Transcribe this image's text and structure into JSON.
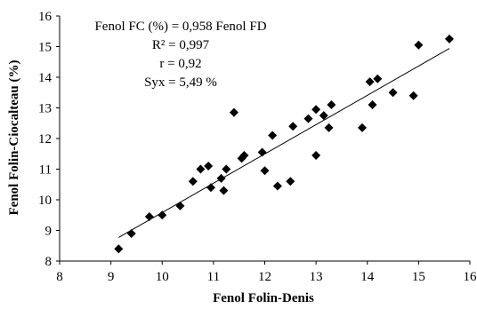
{
  "chart_data": {
    "type": "scatter",
    "title": "",
    "xlabel": "Fenol Folin-Denis",
    "ylabel": "Fenol Folin-Ciocalteau (%)",
    "xlim": [
      8,
      16
    ],
    "ylim": [
      8,
      16
    ],
    "xticks": [
      "8",
      "9",
      "10",
      "11",
      "12",
      "13",
      "14",
      "15",
      "16"
    ],
    "yticks": [
      "8",
      "9",
      "10",
      "11",
      "12",
      "13",
      "14",
      "15",
      "16"
    ],
    "grid": false,
    "marker": "diamond",
    "marker_color": "#000000",
    "annotations": [
      "Fenol FC (%) = 0,958 Fenol FD",
      "R² = 0,997",
      "r = 0,92",
      "Syx = 5,49 %"
    ],
    "trendline": {
      "x": [
        9.15,
        15.6
      ],
      "y": [
        8.77,
        14.94
      ]
    },
    "points": [
      {
        "x": 9.15,
        "y": 8.4
      },
      {
        "x": 9.4,
        "y": 8.9
      },
      {
        "x": 9.75,
        "y": 9.45
      },
      {
        "x": 10.0,
        "y": 9.5
      },
      {
        "x": 10.35,
        "y": 9.8
      },
      {
        "x": 10.6,
        "y": 10.6
      },
      {
        "x": 10.75,
        "y": 11.0
      },
      {
        "x": 10.9,
        "y": 11.1
      },
      {
        "x": 10.95,
        "y": 10.4
      },
      {
        "x": 11.15,
        "y": 10.7
      },
      {
        "x": 11.2,
        "y": 10.3
      },
      {
        "x": 11.25,
        "y": 11.0
      },
      {
        "x": 11.4,
        "y": 12.85
      },
      {
        "x": 11.55,
        "y": 11.35
      },
      {
        "x": 11.6,
        "y": 11.45
      },
      {
        "x": 11.95,
        "y": 11.55
      },
      {
        "x": 12.0,
        "y": 10.95
      },
      {
        "x": 12.15,
        "y": 12.1
      },
      {
        "x": 12.25,
        "y": 10.45
      },
      {
        "x": 12.5,
        "y": 10.6
      },
      {
        "x": 12.55,
        "y": 12.4
      },
      {
        "x": 12.85,
        "y": 12.65
      },
      {
        "x": 13.0,
        "y": 12.95
      },
      {
        "x": 13.0,
        "y": 11.45
      },
      {
        "x": 13.15,
        "y": 12.75
      },
      {
        "x": 13.25,
        "y": 12.35
      },
      {
        "x": 13.3,
        "y": 13.1
      },
      {
        "x": 13.9,
        "y": 12.35
      },
      {
        "x": 14.05,
        "y": 13.85
      },
      {
        "x": 14.1,
        "y": 13.1
      },
      {
        "x": 14.2,
        "y": 13.95
      },
      {
        "x": 14.5,
        "y": 13.5
      },
      {
        "x": 14.9,
        "y": 13.4
      },
      {
        "x": 15.0,
        "y": 15.05
      },
      {
        "x": 15.6,
        "y": 15.25
      }
    ]
  }
}
